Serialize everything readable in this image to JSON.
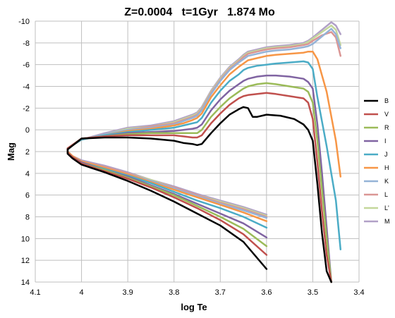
{
  "chart_data": {
    "type": "line",
    "title": "Z=0.0004   t=1Gyr   1.874 Mo",
    "xlabel": "log Te",
    "ylabel": "Mag",
    "xlim": [
      4.1,
      3.4
    ],
    "ylim": [
      14,
      -10
    ],
    "x_reversed": true,
    "y_reversed": true,
    "x_ticks": [
      4.1,
      4.0,
      3.9,
      3.8,
      3.7,
      3.6,
      3.5,
      3.4
    ],
    "x_tick_labels": [
      "4.1",
      "4",
      "3.9",
      "3.8",
      "3.7",
      "3.6",
      "3.5",
      "3.4"
    ],
    "y_ticks": [
      -10,
      -8,
      -6,
      -4,
      -2,
      0,
      2,
      4,
      6,
      8,
      10,
      12,
      14
    ],
    "y_tick_labels": [
      "-10",
      "-8",
      "-6",
      "-4",
      "-2",
      "0",
      "2",
      "4",
      "6",
      "8",
      "10",
      "12",
      "14"
    ],
    "grid": true,
    "legend_position": "right",
    "series": [
      {
        "name": "B",
        "color": "#000000",
        "x": [
          3.6,
          3.65,
          3.7,
          3.75,
          3.8,
          3.85,
          3.9,
          3.95,
          4.0,
          4.02,
          4.03,
          4.03,
          4.0,
          3.95,
          3.9,
          3.85,
          3.8,
          3.78,
          3.76,
          3.75,
          3.74,
          3.72,
          3.7,
          3.68,
          3.66,
          3.65,
          3.64,
          3.63,
          3.62,
          3.6,
          3.57,
          3.54,
          3.52,
          3.51,
          3.5,
          3.49,
          3.48,
          3.47,
          3.46
        ],
        "y": [
          12.8,
          10.3,
          8.8,
          7.7,
          6.6,
          5.6,
          4.7,
          3.9,
          3.2,
          2.6,
          2.2,
          1.8,
          0.8,
          0.7,
          0.7,
          0.8,
          1.0,
          1.2,
          1.3,
          1.4,
          1.3,
          0.3,
          -0.6,
          -1.4,
          -1.9,
          -2.1,
          -2.0,
          -1.2,
          -1.2,
          -1.4,
          -1.3,
          -1.0,
          -0.5,
          0.0,
          1.0,
          5.0,
          9.5,
          13.0,
          14.0
        ]
      },
      {
        "name": "V",
        "color": "#c0504d",
        "x": [
          3.6,
          3.65,
          3.7,
          3.75,
          3.8,
          3.85,
          3.9,
          3.95,
          4.0,
          4.02,
          4.03,
          4.03,
          4.0,
          3.95,
          3.9,
          3.85,
          3.8,
          3.78,
          3.76,
          3.75,
          3.74,
          3.72,
          3.7,
          3.68,
          3.66,
          3.65,
          3.64,
          3.62,
          3.6,
          3.58,
          3.55,
          3.52,
          3.51,
          3.5,
          3.49,
          3.48,
          3.47,
          3.46
        ],
        "y": [
          11.5,
          9.6,
          8.3,
          7.2,
          6.2,
          5.3,
          4.5,
          3.8,
          3.1,
          2.5,
          2.1,
          1.7,
          0.8,
          0.6,
          0.5,
          0.5,
          0.5,
          0.6,
          0.7,
          0.7,
          0.5,
          -0.6,
          -1.5,
          -2.3,
          -2.9,
          -3.1,
          -3.2,
          -3.3,
          -3.4,
          -3.3,
          -3.1,
          -2.9,
          -2.5,
          -1.0,
          3.0,
          7.5,
          11.5,
          14.0
        ]
      },
      {
        "name": "R",
        "color": "#9bbb59",
        "x": [
          3.6,
          3.65,
          3.7,
          3.75,
          3.8,
          3.85,
          3.9,
          3.95,
          4.0,
          4.02,
          4.03,
          4.03,
          4.0,
          3.95,
          3.9,
          3.85,
          3.8,
          3.78,
          3.76,
          3.75,
          3.74,
          3.72,
          3.7,
          3.68,
          3.66,
          3.65,
          3.64,
          3.62,
          3.6,
          3.58,
          3.55,
          3.52,
          3.51,
          3.5,
          3.49,
          3.48,
          3.47,
          3.46
        ],
        "y": [
          10.7,
          9.1,
          8.0,
          7.0,
          6.0,
          5.2,
          4.4,
          3.7,
          3.1,
          2.5,
          2.1,
          1.7,
          0.8,
          0.6,
          0.4,
          0.3,
          0.3,
          0.3,
          0.3,
          0.3,
          0.0,
          -1.2,
          -2.1,
          -2.9,
          -3.5,
          -3.8,
          -4.0,
          -4.2,
          -4.3,
          -4.2,
          -4.0,
          -3.8,
          -3.5,
          -2.5,
          1.0,
          5.5,
          10.0,
          14.0
        ]
      },
      {
        "name": "I",
        "color": "#8064a2",
        "x": [
          3.6,
          3.65,
          3.7,
          3.75,
          3.8,
          3.85,
          3.9,
          3.95,
          4.0,
          4.02,
          4.03,
          4.03,
          4.0,
          3.95,
          3.9,
          3.85,
          3.8,
          3.78,
          3.76,
          3.75,
          3.74,
          3.72,
          3.7,
          3.68,
          3.66,
          3.65,
          3.64,
          3.62,
          3.6,
          3.58,
          3.55,
          3.52,
          3.51,
          3.5,
          3.49,
          3.48,
          3.47,
          3.46
        ],
        "y": [
          9.9,
          8.6,
          7.7,
          6.8,
          5.9,
          5.1,
          4.3,
          3.7,
          3.0,
          2.5,
          2.1,
          1.7,
          0.8,
          0.6,
          0.3,
          0.2,
          0.1,
          0.0,
          -0.1,
          -0.2,
          -0.5,
          -1.8,
          -2.8,
          -3.6,
          -4.2,
          -4.5,
          -4.7,
          -4.9,
          -5.0,
          -5.0,
          -4.9,
          -4.7,
          -4.4,
          -3.8,
          -0.5,
          4.0,
          9.0,
          14.0
        ]
      },
      {
        "name": "J",
        "color": "#4bacc6",
        "x": [
          3.6,
          3.65,
          3.7,
          3.75,
          3.8,
          3.85,
          3.9,
          3.95,
          4.0,
          4.02,
          4.03,
          4.03,
          4.0,
          3.95,
          3.9,
          3.85,
          3.8,
          3.78,
          3.76,
          3.75,
          3.74,
          3.72,
          3.7,
          3.68,
          3.66,
          3.65,
          3.64,
          3.62,
          3.6,
          3.58,
          3.55,
          3.52,
          3.51,
          3.5,
          3.49,
          3.47,
          3.45,
          3.44
        ],
        "y": [
          9.0,
          8.0,
          7.2,
          6.5,
          5.7,
          4.9,
          4.2,
          3.6,
          3.0,
          2.5,
          2.1,
          1.7,
          0.9,
          0.5,
          0.2,
          0.0,
          -0.2,
          -0.4,
          -0.6,
          -0.7,
          -1.1,
          -2.5,
          -3.6,
          -4.5,
          -5.1,
          -5.5,
          -5.7,
          -5.9,
          -6.0,
          -6.1,
          -6.2,
          -6.3,
          -6.2,
          -5.6,
          -3.0,
          1.5,
          6.5,
          11.0
        ]
      },
      {
        "name": "H",
        "color": "#f79646",
        "x": [
          3.6,
          3.65,
          3.7,
          3.75,
          3.8,
          3.85,
          3.9,
          3.95,
          4.0,
          4.02,
          4.03,
          4.03,
          4.0,
          3.95,
          3.9,
          3.85,
          3.8,
          3.78,
          3.76,
          3.75,
          3.74,
          3.72,
          3.7,
          3.68,
          3.66,
          3.65,
          3.64,
          3.62,
          3.6,
          3.58,
          3.55,
          3.52,
          3.51,
          3.5,
          3.49,
          3.47,
          3.45,
          3.44
        ],
        "y": [
          8.4,
          7.6,
          6.9,
          6.2,
          5.5,
          4.8,
          4.1,
          3.5,
          2.9,
          2.4,
          2.0,
          1.7,
          0.9,
          0.5,
          0.1,
          -0.1,
          -0.4,
          -0.6,
          -0.9,
          -1.1,
          -1.5,
          -3.0,
          -4.1,
          -5.1,
          -5.8,
          -6.1,
          -6.4,
          -6.6,
          -6.8,
          -6.9,
          -7.0,
          -7.1,
          -7.2,
          -7.2,
          -6.5,
          -3.5,
          1.0,
          4.3
        ]
      },
      {
        "name": "K",
        "color": "#95b3d7",
        "x": [
          3.6,
          3.65,
          3.7,
          3.75,
          3.8,
          3.85,
          3.9,
          3.95,
          4.0,
          4.02,
          4.03,
          4.03,
          4.0,
          3.95,
          3.9,
          3.85,
          3.8,
          3.78,
          3.76,
          3.75,
          3.74,
          3.72,
          3.7,
          3.68,
          3.66,
          3.65,
          3.64,
          3.62,
          3.6,
          3.58,
          3.55,
          3.52,
          3.51,
          3.5,
          3.48,
          3.46,
          3.45,
          3.44
        ],
        "y": [
          8.1,
          7.4,
          6.8,
          6.1,
          5.4,
          4.7,
          4.1,
          3.5,
          2.9,
          2.4,
          2.0,
          1.7,
          0.9,
          0.4,
          0.0,
          -0.2,
          -0.5,
          -0.8,
          -1.1,
          -1.3,
          -1.8,
          -3.3,
          -4.5,
          -5.5,
          -6.2,
          -6.5,
          -6.8,
          -7.0,
          -7.2,
          -7.3,
          -7.4,
          -7.6,
          -7.7,
          -7.9,
          -8.6,
          -9.3,
          -8.8,
          -7.5
        ]
      },
      {
        "name": "L",
        "color": "#da9694",
        "x": [
          3.6,
          3.65,
          3.7,
          3.75,
          3.8,
          3.85,
          3.9,
          3.95,
          4.0,
          4.02,
          4.03,
          4.03,
          4.0,
          3.95,
          3.9,
          3.85,
          3.8,
          3.78,
          3.76,
          3.75,
          3.74,
          3.72,
          3.7,
          3.68,
          3.66,
          3.65,
          3.64,
          3.62,
          3.6,
          3.58,
          3.55,
          3.52,
          3.51,
          3.5,
          3.48,
          3.46,
          3.45,
          3.44
        ],
        "y": [
          8.0,
          7.3,
          6.7,
          6.0,
          5.3,
          4.7,
          4.0,
          3.4,
          2.9,
          2.4,
          2.0,
          1.7,
          0.9,
          0.4,
          0.0,
          -0.3,
          -0.6,
          -0.9,
          -1.2,
          -1.4,
          -1.9,
          -3.4,
          -4.6,
          -5.6,
          -6.3,
          -6.7,
          -7.0,
          -7.2,
          -7.4,
          -7.5,
          -7.6,
          -7.8,
          -7.9,
          -8.2,
          -8.7,
          -9.0,
          -8.5,
          -6.8
        ]
      },
      {
        "name": "L'",
        "color": "#c4d79b",
        "x": [
          3.6,
          3.65,
          3.7,
          3.75,
          3.8,
          3.85,
          3.9,
          3.95,
          4.0,
          4.02,
          4.03,
          4.03,
          4.0,
          3.95,
          3.9,
          3.85,
          3.8,
          3.78,
          3.76,
          3.75,
          3.74,
          3.72,
          3.7,
          3.68,
          3.66,
          3.65,
          3.64,
          3.62,
          3.6,
          3.58,
          3.55,
          3.52,
          3.51,
          3.5,
          3.48,
          3.46,
          3.45,
          3.44
        ],
        "y": [
          7.9,
          7.2,
          6.6,
          6.0,
          5.3,
          4.6,
          4.0,
          3.4,
          2.9,
          2.4,
          2.0,
          1.7,
          0.9,
          0.4,
          -0.1,
          -0.3,
          -0.7,
          -1.0,
          -1.3,
          -1.5,
          -2.0,
          -3.5,
          -4.7,
          -5.7,
          -6.4,
          -6.8,
          -7.1,
          -7.3,
          -7.5,
          -7.6,
          -7.7,
          -7.9,
          -8.1,
          -8.4,
          -9.0,
          -9.6,
          -9.2,
          -7.8
        ]
      },
      {
        "name": "M",
        "color": "#b1a0c7",
        "x": [
          3.6,
          3.65,
          3.7,
          3.75,
          3.8,
          3.85,
          3.9,
          3.95,
          4.0,
          4.02,
          4.03,
          4.03,
          4.0,
          3.95,
          3.9,
          3.85,
          3.8,
          3.78,
          3.76,
          3.75,
          3.74,
          3.72,
          3.7,
          3.68,
          3.66,
          3.65,
          3.64,
          3.62,
          3.6,
          3.58,
          3.55,
          3.52,
          3.51,
          3.5,
          3.48,
          3.46,
          3.45,
          3.44
        ],
        "y": [
          7.8,
          7.1,
          6.5,
          5.9,
          5.2,
          4.6,
          3.9,
          3.3,
          2.8,
          2.4,
          2.0,
          1.7,
          0.9,
          0.3,
          -0.2,
          -0.4,
          -0.8,
          -1.1,
          -1.4,
          -1.6,
          -2.1,
          -3.6,
          -4.8,
          -5.8,
          -6.5,
          -6.9,
          -7.2,
          -7.4,
          -7.6,
          -7.7,
          -7.8,
          -8.0,
          -8.2,
          -8.5,
          -9.2,
          -9.9,
          -9.6,
          -8.8
        ]
      }
    ]
  }
}
